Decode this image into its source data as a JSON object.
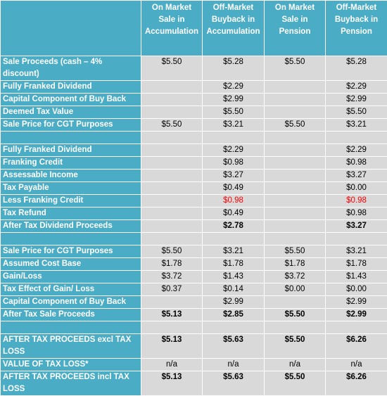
{
  "table": {
    "columns": [
      "On Market Sale in Accumulation",
      "Off-Market Buyback in Accumulation",
      "On Market Sale in Pension",
      "Off-Market Buyback in Pension"
    ],
    "rows": [
      {
        "label": "Sale Proceeds (cash – 4% discount)",
        "cells": [
          "$5.50",
          "$5.28",
          "$5.50",
          "$5.28"
        ]
      },
      {
        "label": "Fully Franked Dividend",
        "cells": [
          null,
          "$2.29",
          null,
          "$2.29"
        ]
      },
      {
        "label": "Capital Component of Buy Back",
        "cells": [
          null,
          "$2.99",
          null,
          "$2.99"
        ]
      },
      {
        "label": "Deemed Tax Value",
        "cells": [
          null,
          "$5.50",
          null,
          "$5.50"
        ]
      },
      {
        "label": "Sale Price for CGT Purposes",
        "cells": [
          "$5.50",
          "$3.21",
          "$5.50",
          "$3.21"
        ]
      },
      {
        "label": null,
        "cells": [
          null,
          null,
          null,
          null
        ]
      },
      {
        "label": "Fully Franked Dividend",
        "cells": [
          null,
          "$2.29",
          null,
          "$2.29"
        ]
      },
      {
        "label": "Franking Credit",
        "cells": [
          null,
          "$0.98",
          null,
          "$0.98"
        ]
      },
      {
        "label": "Assessable Income",
        "cells": [
          null,
          "$3.27",
          null,
          "$3.27"
        ]
      },
      {
        "label": "Tax Payable",
        "cells": [
          null,
          "$0.49",
          null,
          "$0.00"
        ]
      },
      {
        "label": "Less Franking Credit",
        "cells": [
          null,
          "$0.98",
          null,
          "$0.98"
        ],
        "color": "#ff0000"
      },
      {
        "label": "Tax Refund",
        "cells": [
          null,
          "$0.49",
          null,
          "$0.98"
        ]
      },
      {
        "label": "After Tax Dividend Proceeds",
        "cells": [
          null,
          "$2.78",
          null,
          "$3.27"
        ],
        "bold": true
      },
      {
        "label": null,
        "cells": [
          null,
          null,
          null,
          null
        ]
      },
      {
        "label": "Sale Price for CGT Purposes",
        "cells": [
          "$5.50",
          "$3.21",
          "$5.50",
          "$3.21"
        ]
      },
      {
        "label": "Assumed Cost Base",
        "cells": [
          "$1.78",
          "$1.78",
          "$1.78",
          "$1.78"
        ]
      },
      {
        "label": "Gain/Loss",
        "cells": [
          "$3.72",
          "$1.43",
          "$3.72",
          "$1.43"
        ]
      },
      {
        "label": "Tax Effect of Gain/ Loss",
        "cells": [
          "$0.37",
          "$0.14",
          "$0.00",
          "$0.00"
        ]
      },
      {
        "label": "Capital Component of Buy Back",
        "cells": [
          null,
          "$2.99",
          null,
          "$2.99"
        ]
      },
      {
        "label": "After Tax Sale Proceeds",
        "cells": [
          "$5.13",
          "$2.85",
          "$5.50",
          "$2.99"
        ],
        "bold": true
      },
      {
        "label": null,
        "cells": [
          null,
          null,
          null,
          null
        ]
      },
      {
        "label": "AFTER TAX PROCEEDS excl TAX LOSS",
        "cells": [
          "$5.13",
          "$5.63",
          "$5.50",
          "$6.26"
        ],
        "bold": true
      },
      {
        "label": "VALUE OF TAX LOSS*",
        "cells": [
          "n/a",
          "n/a",
          "n/a",
          "n/a"
        ]
      },
      {
        "label": "AFTER TAX PROCEEDS incl TAX LOSS",
        "cells": [
          "$5.13",
          "$5.63",
          "$5.50",
          "$6.26"
        ],
        "bold": true
      }
    ]
  }
}
